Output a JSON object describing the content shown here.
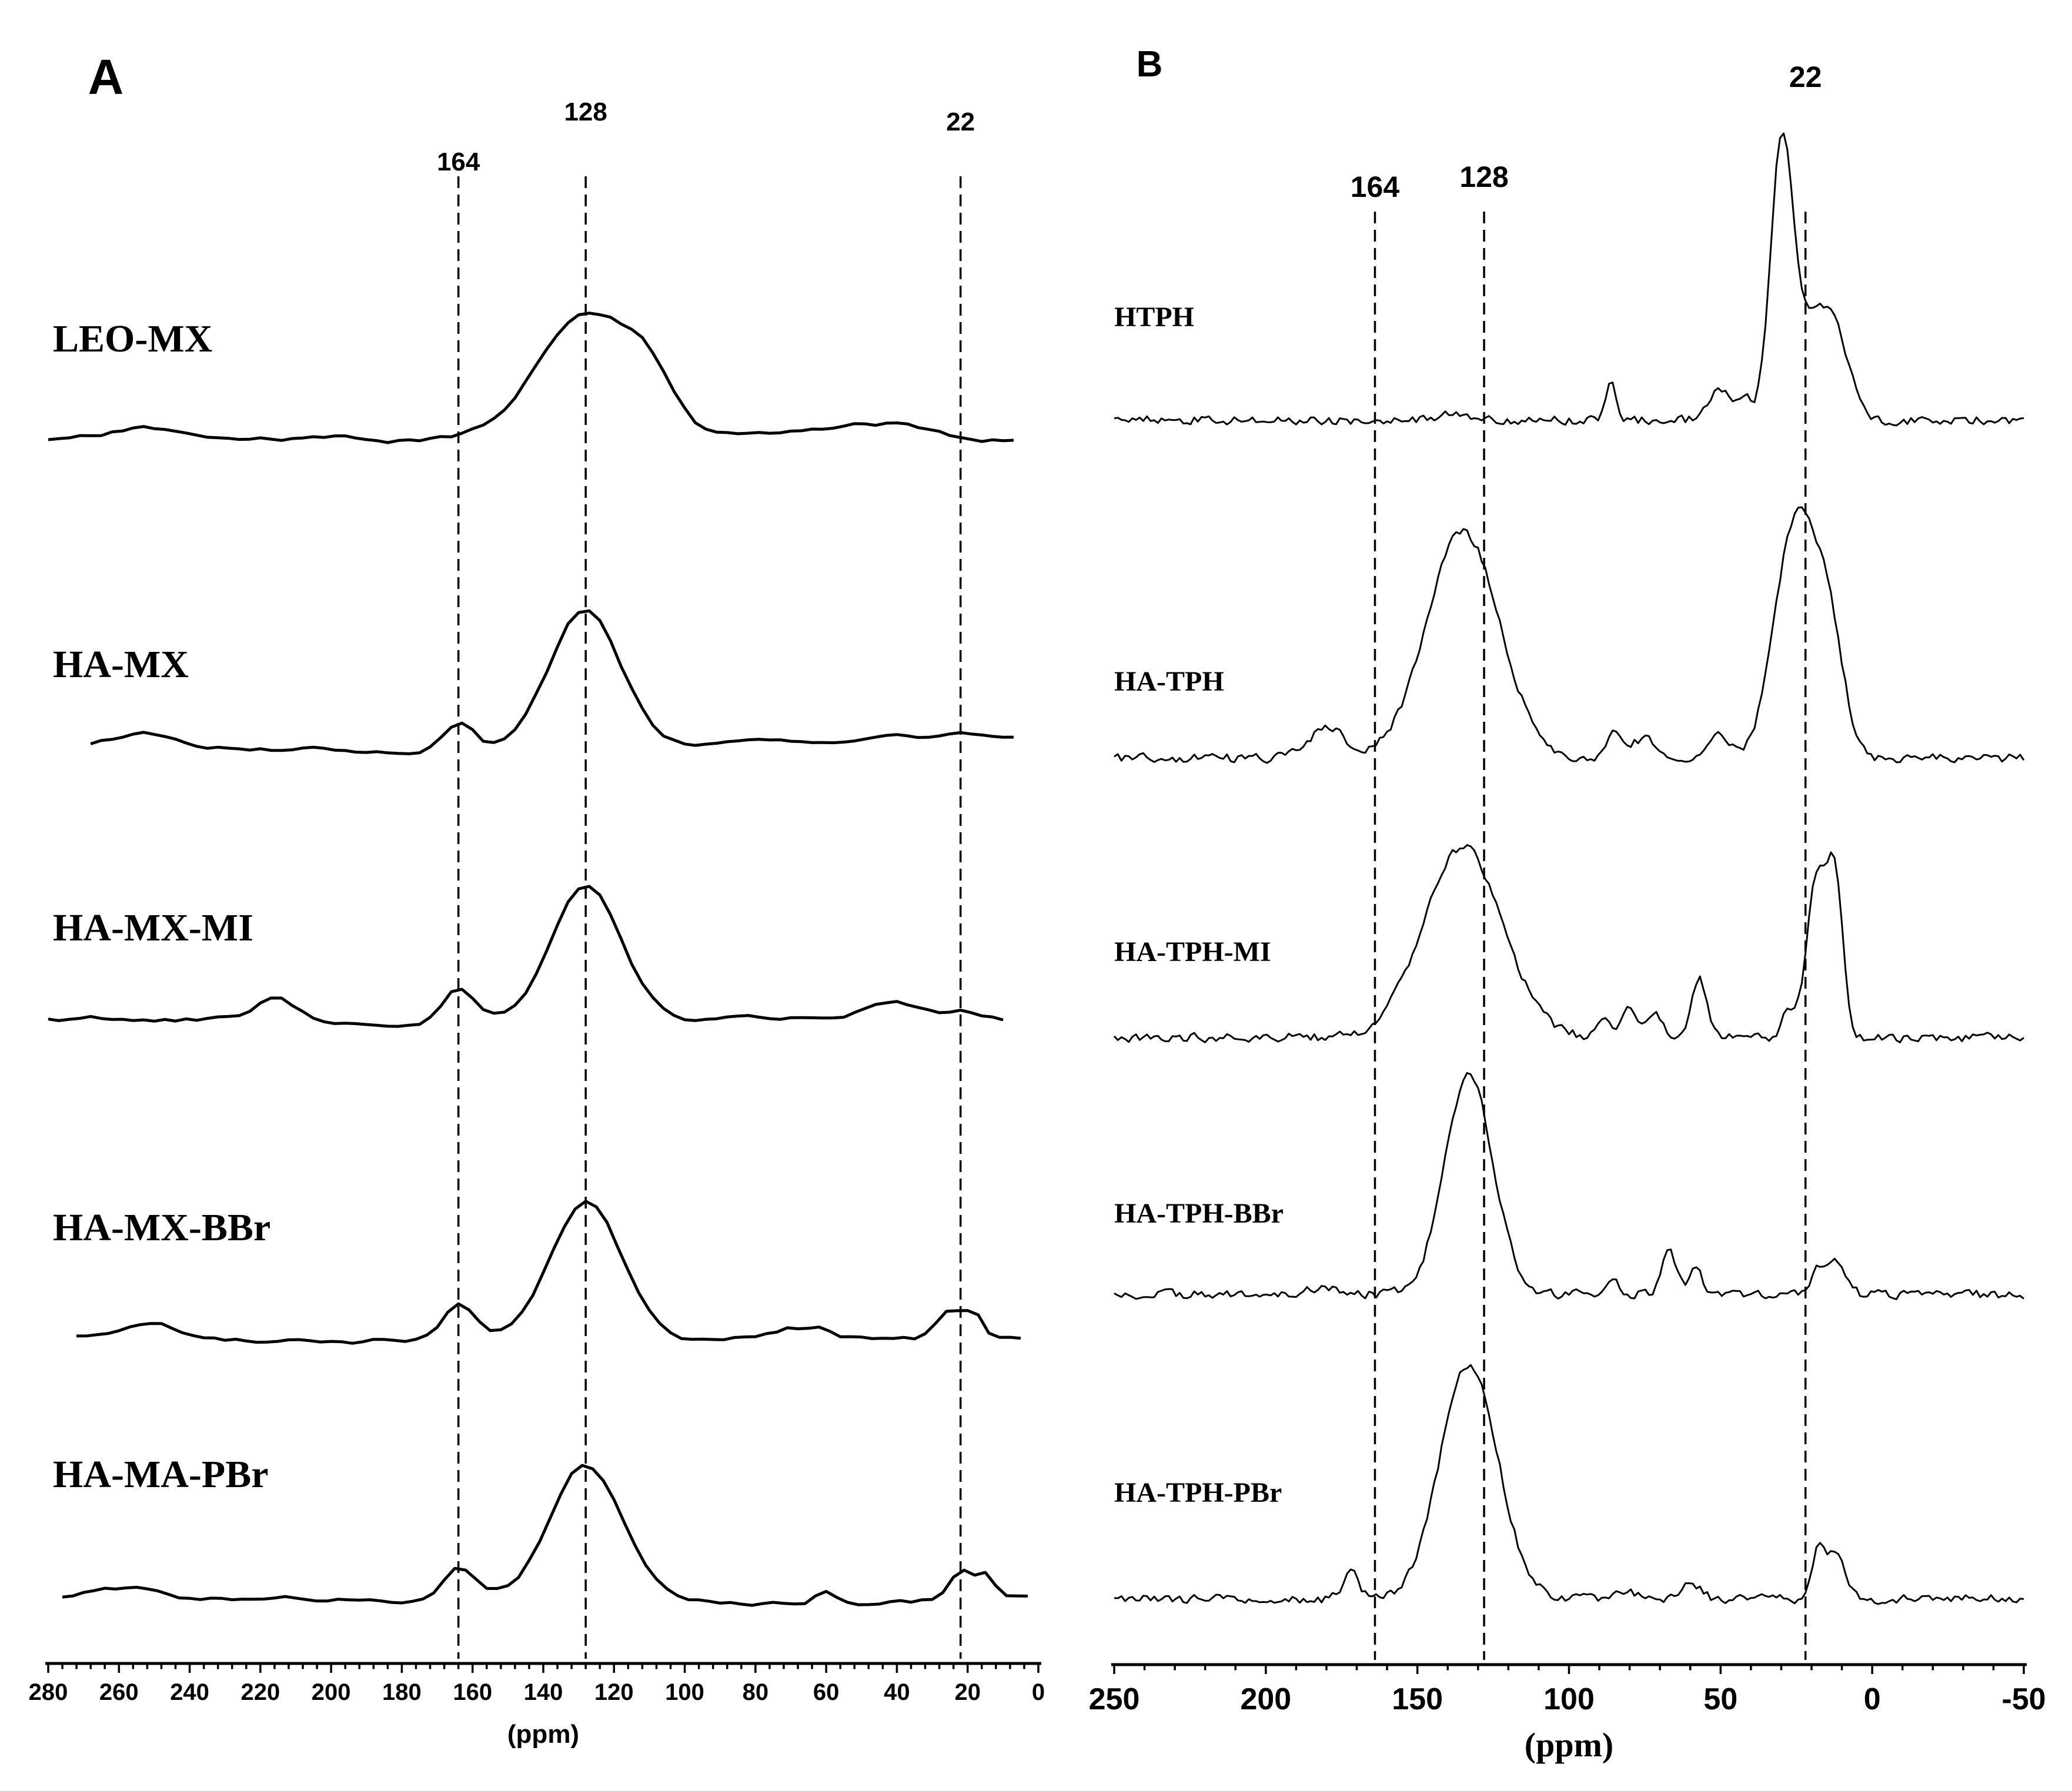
{
  "chart_data": [
    {
      "panel": "A",
      "type": "line",
      "title": "",
      "xlabel": "(ppm)",
      "ylabel": "",
      "xlim": [
        280,
        0
      ],
      "x_ticks": [
        280,
        260,
        240,
        220,
        200,
        180,
        160,
        140,
        120,
        100,
        80,
        60,
        40,
        20,
        0
      ],
      "reference_lines": [
        {
          "label": "164",
          "x": 164
        },
        {
          "label": "128",
          "x": 128
        },
        {
          "label": "22",
          "x": 22
        }
      ],
      "series": [
        {
          "name": "LEO-MX",
          "x_range": [
            280,
            5
          ],
          "peaks": [
            [
              253,
              18,
              9
            ],
            [
              128,
              215,
              14
            ],
            [
              110,
              60,
              7
            ],
            [
              60,
              12,
              15
            ],
            [
              40,
              18,
              10
            ]
          ]
        },
        {
          "name": "HA-MX",
          "x_range": [
            268,
            5
          ],
          "peaks": [
            [
              252,
              22,
              8
            ],
            [
              164,
              52,
              4.5
            ],
            [
              128,
              232,
              10
            ],
            [
              40,
              10,
              15
            ],
            [
              22,
              6,
              5
            ]
          ]
        },
        {
          "name": "HA-MX-MI",
          "x_range": [
            280,
            10
          ],
          "peaks": [
            [
              215,
              38,
              5
            ],
            [
              164,
              58,
              4.5
            ],
            [
              128,
              230,
              10
            ],
            [
              42,
              33,
              8
            ],
            [
              22,
              14,
              5
            ]
          ]
        },
        {
          "name": "HA-MX-BBr",
          "x_range": [
            272,
            5
          ],
          "peaks": [
            [
              252,
              25,
              8
            ],
            [
              164,
              60,
              4.5
            ],
            [
              128,
              238,
              10
            ],
            [
              70,
              12,
              4
            ],
            [
              62,
              16,
              3
            ],
            [
              25,
              44,
              3.5
            ],
            [
              18,
              40,
              2.5
            ]
          ]
        },
        {
          "name": "HA-MA-PBr",
          "x_range": [
            276,
            2
          ],
          "peaks": [
            [
              258,
              16,
              9
            ],
            [
              164,
              55,
              4.5
            ],
            [
              128,
              228,
              10
            ],
            [
              60,
              24,
              3
            ],
            [
              22,
              48,
              3
            ],
            [
              15,
              42,
              2.5
            ]
          ]
        }
      ]
    },
    {
      "panel": "B",
      "type": "line",
      "title": "",
      "xlabel": "(ppm)",
      "ylabel": "",
      "xlim": [
        250,
        -50
      ],
      "x_ticks": [
        250,
        200,
        150,
        100,
        50,
        0,
        -50
      ],
      "reference_lines": [
        {
          "label": "164",
          "x": 164
        },
        {
          "label": "128",
          "x": 128
        },
        {
          "label": "22",
          "x": 22
        }
      ],
      "series": [
        {
          "name": "HTPH",
          "x_range": [
            250,
            -50
          ],
          "peaks": [
            [
              138,
              16,
              4
            ],
            [
              86,
              62,
              1.8
            ],
            [
              50,
              50,
              4
            ],
            [
              42,
              30,
              2
            ],
            [
              30,
              410,
              3.5
            ],
            [
              22,
              160,
              7
            ],
            [
              12,
              110,
              5
            ]
          ]
        },
        {
          "name": "HA-TPH",
          "x_range": [
            250,
            -50
          ],
          "peaks": [
            [
              180,
              52,
              6
            ],
            [
              135,
              385,
              12
            ],
            [
              85,
              40,
              2
            ],
            [
              75,
              35,
              4
            ],
            [
              50,
              40,
              3
            ],
            [
              25,
              405,
              7
            ],
            [
              14,
              170,
              5
            ]
          ]
        },
        {
          "name": "HA-TPH-MI",
          "x_range": [
            250,
            -50
          ],
          "peaks": [
            [
              135,
              325,
              13
            ],
            [
              88,
              40,
              2
            ],
            [
              80,
              52,
              2.5
            ],
            [
              72,
              38,
              3
            ],
            [
              57,
              102,
              2.5
            ],
            [
              28,
              42,
              2
            ],
            [
              18,
              275,
              3.5
            ],
            [
              12,
              230,
              2.5
            ]
          ]
        },
        {
          "name": "HA-TPH-BBr",
          "x_range": [
            250,
            -50
          ],
          "peaks": [
            [
              180,
              12,
              6
            ],
            [
              133,
              370,
              8
            ],
            [
              86,
              30,
              1.8
            ],
            [
              67,
              70,
              2.5
            ],
            [
              58,
              42,
              2
            ],
            [
              18,
              44,
              2
            ],
            [
              12,
              52,
              3
            ]
          ]
        },
        {
          "name": "HA-TPH-PBr",
          "x_range": [
            250,
            -50
          ],
          "peaks": [
            [
              172,
              48,
              2.5
            ],
            [
              133,
              400,
              9.5
            ],
            [
              82,
              16,
              3
            ],
            [
              60,
              32,
              3
            ],
            [
              18,
              78,
              2
            ],
            [
              12,
              80,
              3
            ]
          ]
        }
      ]
    }
  ]
}
